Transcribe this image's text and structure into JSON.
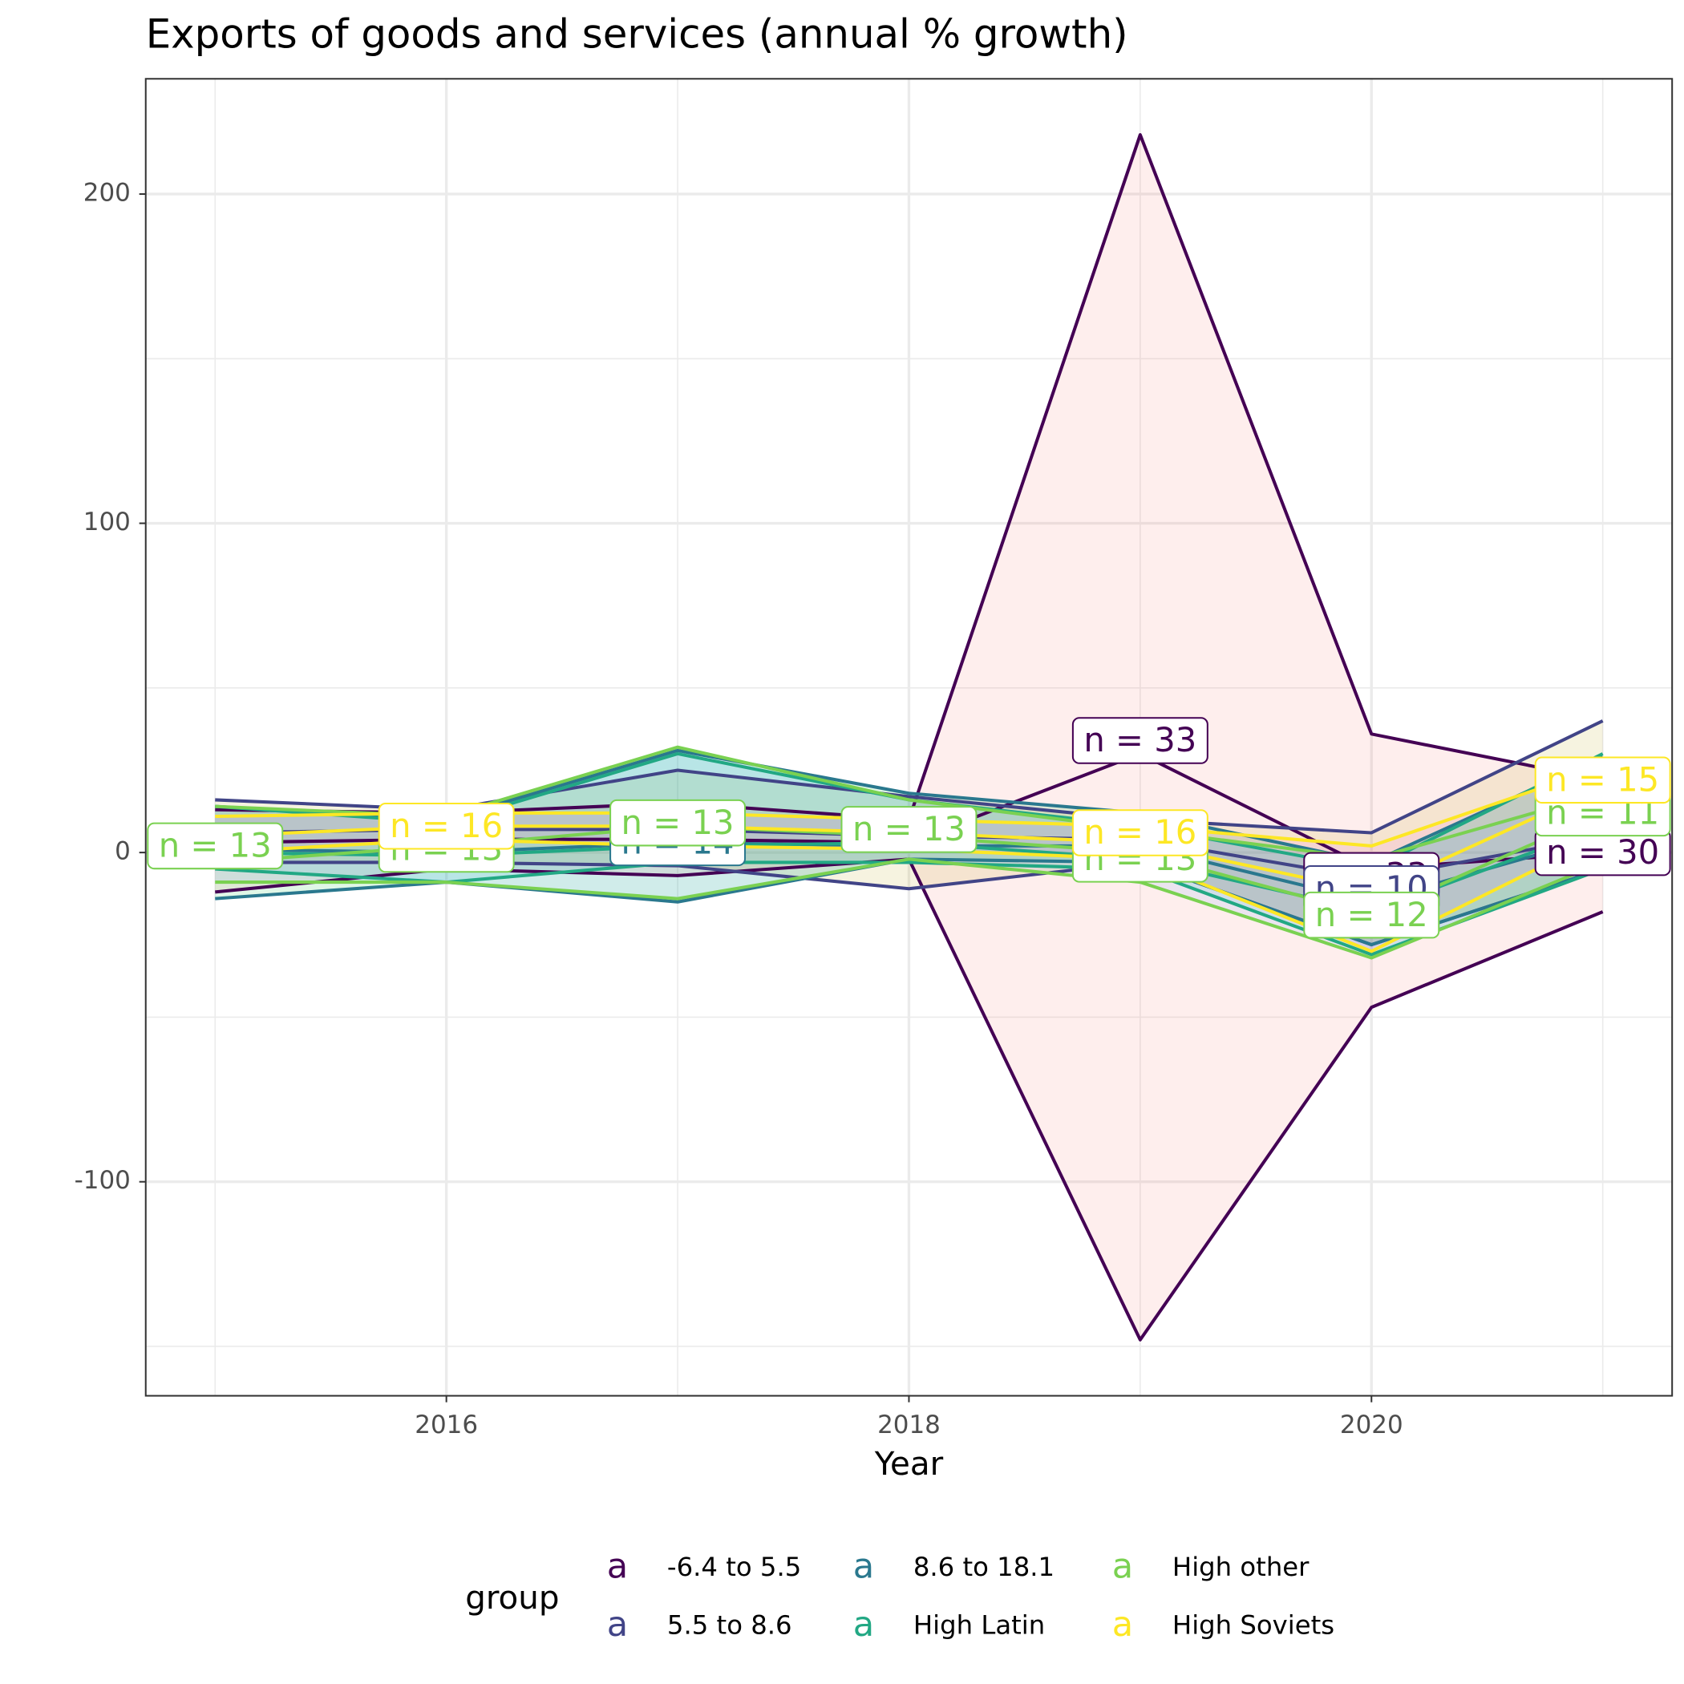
{
  "chart_data": {
    "type": "ribbon-line",
    "title": "Exports of goods and services (annual % growth)",
    "x_label": "Year",
    "legend_title": "group",
    "legend_key": "a",
    "legend_position": "bottom",
    "x": [
      2015,
      2016,
      2017,
      2018,
      2019,
      2020,
      2021
    ],
    "xlim": [
      2014.7,
      2021.3
    ],
    "xticks": [
      2016,
      2018,
      2020
    ],
    "xminor": [
      2015,
      2017,
      2019,
      2021
    ],
    "ylim": [
      -165,
      235
    ],
    "yticks": [
      -100,
      0,
      100,
      200
    ],
    "yminor": [
      -150,
      -50,
      50,
      150
    ],
    "grid": true,
    "series": [
      {
        "name": "-6.4 to 5.5",
        "color": "#440154",
        "fill": "#F8766D",
        "upper": [
          13,
          12,
          15,
          10,
          218,
          36,
          22
        ],
        "lower": [
          -12,
          -5,
          -7,
          -2,
          -148,
          -47,
          -18
        ],
        "values": [
          3,
          4,
          4,
          3,
          30,
          -5,
          0
        ],
        "annotations": [
          {
            "x": 2019,
            "y": 34,
            "text": "n = 33"
          },
          {
            "x": 2020,
            "y": -7,
            "text": "n = 33"
          },
          {
            "x": 2021,
            "y": 0,
            "text": "n = 30"
          }
        ]
      },
      {
        "name": "5.5 to 8.6",
        "color": "#414487",
        "fill": "#B79F00",
        "upper": [
          16,
          13,
          25,
          17,
          10,
          6,
          40
        ],
        "lower": [
          -3,
          -3,
          -4,
          -11,
          -3,
          -28,
          -5
        ],
        "values": [
          6,
          7,
          7,
          5,
          4,
          -8,
          5
        ],
        "annotations": [
          {
            "x": 2020,
            "y": -11,
            "text": "n = 10"
          }
        ]
      },
      {
        "name": "8.6 to 18.1",
        "color": "#2A788E",
        "fill": "#00BA38",
        "upper": [
          14,
          10,
          31,
          18,
          12,
          -3,
          29
        ],
        "lower": [
          -14,
          -9,
          -15,
          -2,
          -3,
          -28,
          -5
        ],
        "values": [
          1,
          0,
          3,
          2,
          2,
          -15,
          5
        ],
        "annotations": [
          {
            "x": 2017,
            "y": 3,
            "text": "n = 14"
          }
        ]
      },
      {
        "name": "High Latin",
        "color": "#22A884",
        "fill": "#00BFC4",
        "upper": [
          14,
          9,
          30,
          16,
          8,
          -5,
          30
        ],
        "lower": [
          -5,
          -9,
          -3,
          -3,
          -5,
          -31,
          -5
        ],
        "values": [
          0,
          -1,
          2,
          3,
          -2,
          -18,
          8
        ],
        "annotations": []
      },
      {
        "name": "High other",
        "color": "#7AD151",
        "fill": "#619CFF",
        "upper": [
          14,
          11,
          32,
          16,
          7,
          -2,
          18
        ],
        "lower": [
          -9,
          -9,
          -14,
          -2,
          -9,
          -32,
          -3
        ],
        "values": [
          -3,
          2,
          8,
          5,
          0,
          -19,
          12
        ],
        "annotations": [
          {
            "x": 2015,
            "y": 2,
            "text": "n = 13"
          },
          {
            "x": 2016,
            "y": 1,
            "text": "n = 13"
          },
          {
            "x": 2017,
            "y": 9,
            "text": "n = 13"
          },
          {
            "x": 2018,
            "y": 7,
            "text": "n = 13"
          },
          {
            "x": 2019,
            "y": -2,
            "text": "n = 13"
          },
          {
            "x": 2020,
            "y": -19,
            "text": "n = 12"
          },
          {
            "x": 2021,
            "y": 12,
            "text": "n = 11"
          }
        ]
      },
      {
        "name": "High Soviets",
        "color": "#FDE725",
        "fill": "#F564E3",
        "upper": [
          11,
          12,
          12,
          10,
          8,
          2,
          26
        ],
        "lower": [
          0,
          4,
          2,
          1,
          -2,
          -30,
          5
        ],
        "values": [
          5,
          8,
          8,
          6,
          3,
          -12,
          20
        ],
        "annotations": [
          {
            "x": 2016,
            "y": 8,
            "text": "n = 16"
          },
          {
            "x": 2019,
            "y": 6,
            "text": "n = 16"
          },
          {
            "x": 2021,
            "y": 22,
            "text": "n = 15"
          }
        ]
      }
    ]
  }
}
